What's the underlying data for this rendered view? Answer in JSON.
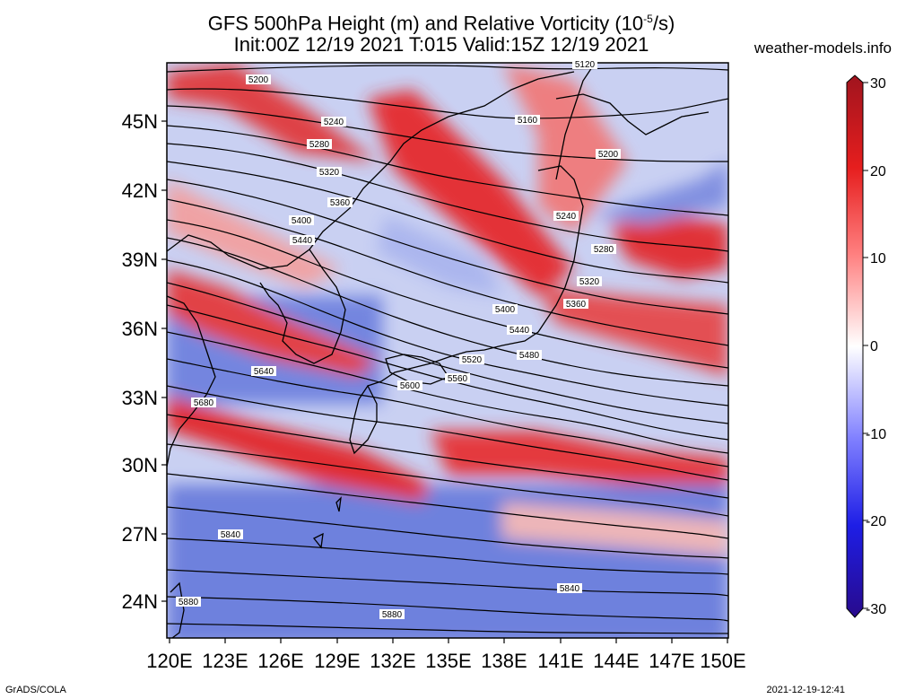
{
  "title_line1": "GFS 500hPa Height (m) and Relative Vorticity (10",
  "title_sup": "-5",
  "title_tail": "/s)",
  "title_line2": "Init:00Z 12/19 2021 T:015 Valid:15Z 12/19 2021",
  "site": "weather-models.info",
  "footer_left": "GrADS/COLA",
  "footer_right": "2021-12-19-12:41",
  "lat_labels": [
    "45N",
    "42N",
    "39N",
    "36N",
    "33N",
    "30N",
    "27N",
    "24N"
  ],
  "lon_labels": [
    "120E",
    "123E",
    "126E",
    "129E",
    "132E",
    "135E",
    "138E",
    "141E",
    "144E",
    "147E",
    "150E"
  ],
  "colorbar": {
    "ticks": [
      "30",
      "20",
      "10",
      "0",
      "-10",
      "-20",
      "-30"
    ],
    "colors_top_to_bottom": [
      "#a0141e",
      "#e61e1e",
      "#ff8080",
      "#ffffff",
      "#8080ff",
      "#1e1ee6",
      "#280a8c"
    ]
  },
  "contours": {
    "labels": [
      "5120",
      "5200",
      "5160",
      "5240",
      "5280",
      "5200",
      "5320",
      "5360",
      "5240",
      "5400",
      "5280",
      "5440",
      "5320",
      "5360",
      "5400",
      "5440",
      "5480",
      "5520",
      "5560",
      "5600",
      "5640",
      "5680",
      "5840",
      "5840",
      "5880",
      "5880"
    ]
  },
  "map_colors": {
    "positive": "#e8282c",
    "negative": "#5c6fd6",
    "coast": "#000000"
  }
}
